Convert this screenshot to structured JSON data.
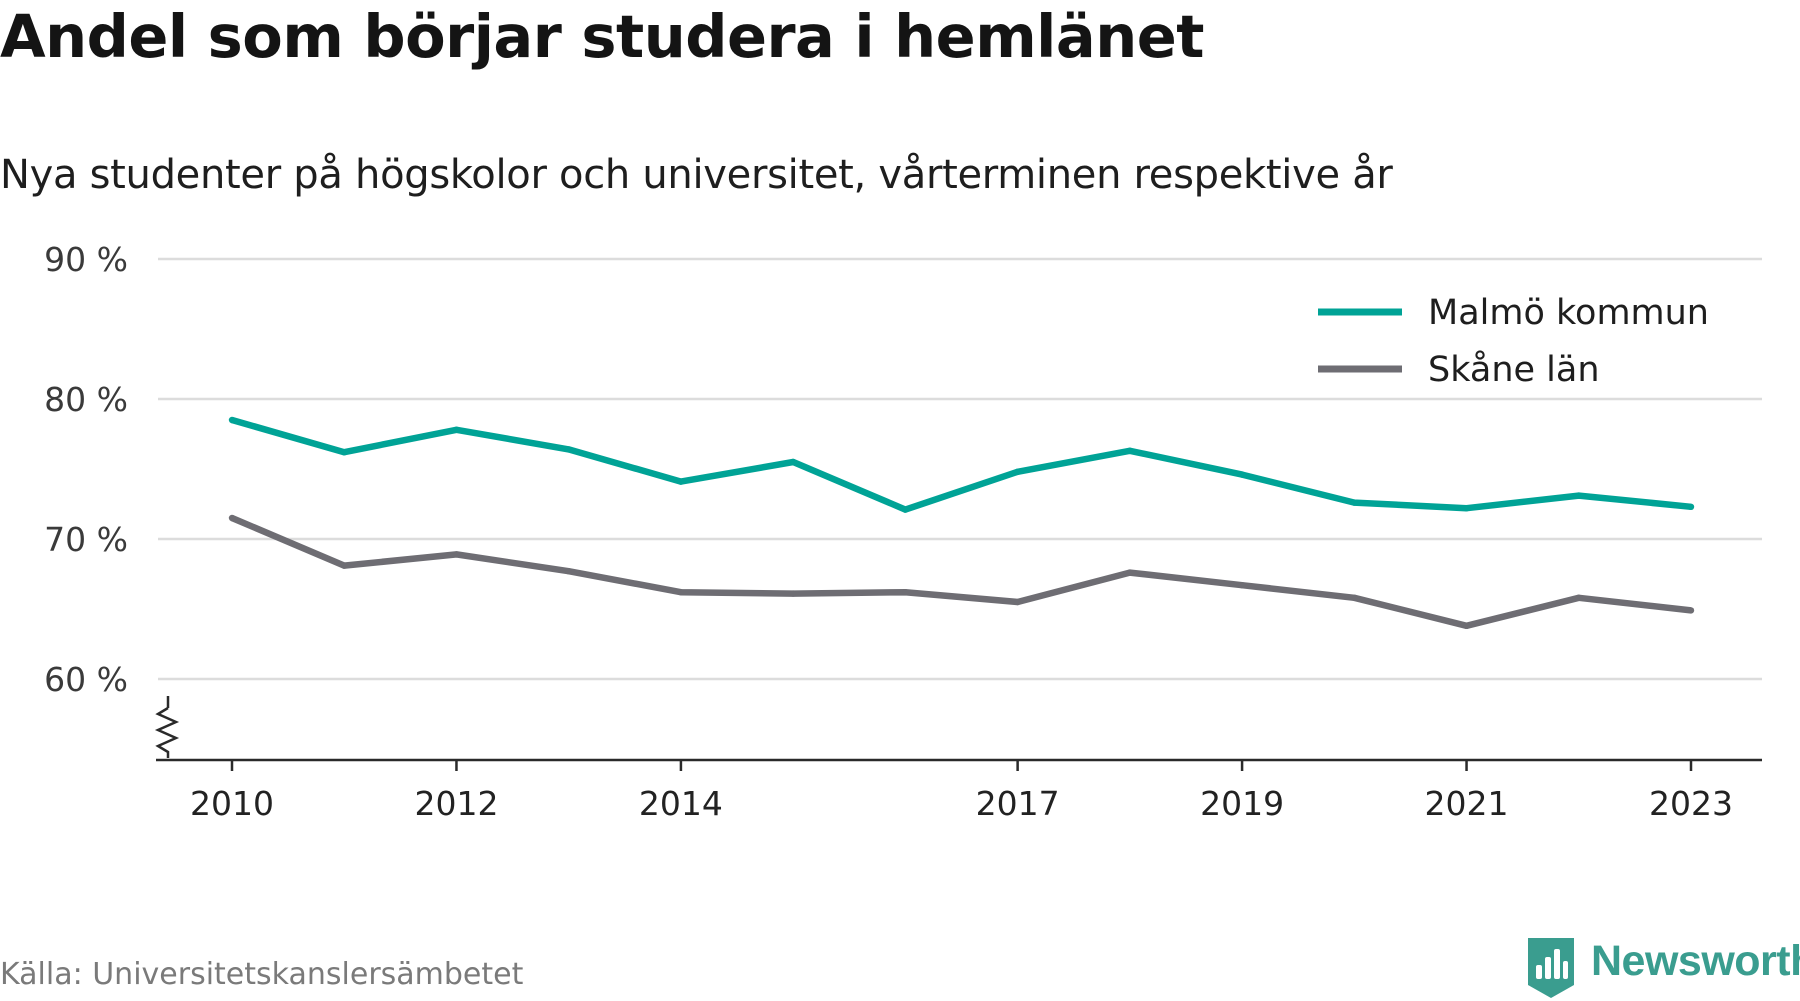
{
  "header": {
    "title": "Andel som börjar studera i hemlänet",
    "subtitle": "Nya studenter på högskolor och universitet, vårterminen respektive år"
  },
  "footer": {
    "source": "Källa: Universitetskanslersämbetet",
    "brand": "Newsworthy",
    "brand_icon": "newsworthy-logo-icon",
    "brand_color": "#3a9d8f"
  },
  "chart_data": {
    "type": "line",
    "x": [
      2010,
      2011,
      2012,
      2013,
      2014,
      2015,
      2016,
      2017,
      2018,
      2019,
      2020,
      2021,
      2022,
      2023
    ],
    "x_tick_values": [
      2010,
      2012,
      2014,
      2017,
      2019,
      2021,
      2023
    ],
    "x_tick_labels": [
      "2010",
      "2012",
      "2014",
      "2017",
      "2019",
      "2021",
      "2023"
    ],
    "y_tick_values": [
      60,
      70,
      80,
      90
    ],
    "y_tick_labels": [
      "60 %",
      "70 %",
      "80 %",
      "90 %"
    ],
    "ylim": [
      54,
      90
    ],
    "y_axis_break": true,
    "grid": true,
    "legend_position": "top-right",
    "series": [
      {
        "name": "Malmö kommun",
        "color": "#00a396",
        "values": [
          78.5,
          76.2,
          77.8,
          76.4,
          74.1,
          75.5,
          72.1,
          74.8,
          76.3,
          74.6,
          72.6,
          72.2,
          73.1,
          72.3
        ]
      },
      {
        "name": "Skåne län",
        "color": "#6e6d73",
        "values": [
          71.5,
          68.1,
          68.9,
          67.7,
          66.2,
          66.1,
          66.2,
          65.5,
          67.6,
          66.7,
          65.8,
          63.8,
          65.8,
          64.9
        ]
      }
    ]
  }
}
